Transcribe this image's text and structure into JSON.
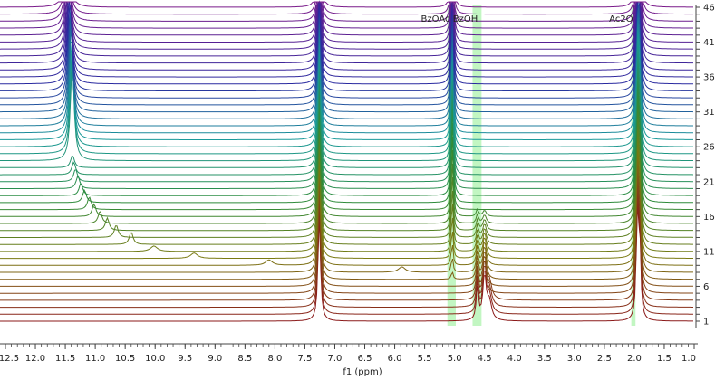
{
  "chart_data": {
    "type": "line",
    "subtype": "stacked NMR spectra (1H)",
    "xlabel": "f1 (ppm)",
    "xlim": [
      12.5,
      1.0
    ],
    "x_reversed": true,
    "x_ticks": [
      "12.5",
      "12.0",
      "11.5",
      "11.0",
      "10.5",
      "10.0",
      "9.5",
      "9.0",
      "8.5",
      "8.0",
      "7.5",
      "7.0",
      "6.5",
      "6.0",
      "5.5",
      "5.0",
      "4.5",
      "4.0",
      "3.5",
      "3.0",
      "2.5",
      "2.0",
      "1.5",
      "1.0"
    ],
    "right_axis_ticks": [
      "1",
      "6",
      "11",
      "16",
      "21",
      "26",
      "31",
      "36",
      "41",
      "46"
    ],
    "n_spectra": 46,
    "highlight_bands": [
      {
        "from": 5.12,
        "to": 4.98
      },
      {
        "from": 4.7,
        "to": 4.55
      },
      {
        "from": 2.05,
        "to": 1.98
      }
    ],
    "annotations": [
      {
        "text": "BzOAc",
        "x": 5.32
      },
      {
        "text": "BzOH",
        "x": 4.82
      },
      {
        "text": "Ac2O",
        "x": 2.22
      }
    ],
    "fixed_peaks_ppm": [
      7.26,
      5.04,
      1.95,
      1.91
    ],
    "drifting_peak": {
      "description": "broad exchangeable peak moving downfield as spectra progress",
      "points": [
        {
          "spectrum": 8,
          "ppm": 5.88
        },
        {
          "spectrum": 9,
          "ppm": 8.1
        },
        {
          "spectrum": 10,
          "ppm": 9.35
        },
        {
          "spectrum": 11,
          "ppm": 10.02
        },
        {
          "spectrum": 12,
          "ppm": 10.4
        },
        {
          "spectrum": 13,
          "ppm": 10.65
        },
        {
          "spectrum": 14,
          "ppm": 10.8
        },
        {
          "spectrum": 15,
          "ppm": 10.92
        },
        {
          "spectrum": 16,
          "ppm": 11.02
        },
        {
          "spectrum": 17,
          "ppm": 11.1
        },
        {
          "spectrum": 18,
          "ppm": 11.18
        },
        {
          "spectrum": 19,
          "ppm": 11.24
        },
        {
          "spectrum": 20,
          "ppm": 11.29
        },
        {
          "spectrum": 21,
          "ppm": 11.33
        },
        {
          "spectrum": 22,
          "ppm": 11.36
        },
        {
          "spectrum": 23,
          "ppm": 11.38
        },
        {
          "spectrum": 46,
          "ppm": 11.47
        }
      ]
    },
    "colors": {
      "early": "#8b1a1a",
      "mid": "#2e8b3a",
      "teal": "#1a9a9a",
      "late": "#7a1a8a",
      "band": "#90ee90"
    }
  }
}
